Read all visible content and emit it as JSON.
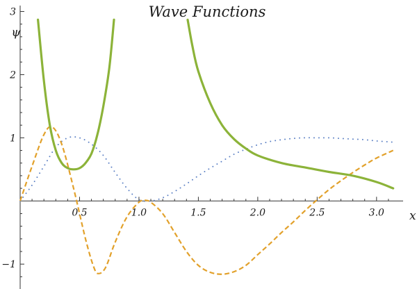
{
  "chart_data": {
    "type": "line",
    "title": "Wave Functions",
    "xlabel": "x",
    "ylabel": "ψ",
    "xlim": [
      0,
      3.2
    ],
    "ylim": [
      -1.35,
      3.05
    ],
    "xticks": [
      0.5,
      1.0,
      1.5,
      2.0,
      2.5,
      3.0
    ],
    "xtick_labels": [
      "0.5",
      "1.0",
      "1.5",
      "2.0",
      "2.5",
      "3.0"
    ],
    "yticks": [
      -1,
      1,
      2,
      3
    ],
    "ytick_labels": [
      "−1",
      "1",
      "2",
      "3"
    ],
    "grid": false,
    "series": [
      {
        "style": "dotted",
        "color": "#5a7fc4",
        "points": [
          [
            0.0,
            0.0
          ],
          [
            0.1,
            0.25
          ],
          [
            0.2,
            0.55
          ],
          [
            0.3,
            0.85
          ],
          [
            0.4,
            1.0
          ],
          [
            0.5,
            1.0
          ],
          [
            0.6,
            0.9
          ],
          [
            0.7,
            0.72
          ],
          [
            0.8,
            0.45
          ],
          [
            0.9,
            0.2
          ],
          [
            1.0,
            0.02
          ],
          [
            1.1,
            0.0
          ],
          [
            1.2,
            0.05
          ],
          [
            1.3,
            0.15
          ],
          [
            1.4,
            0.27
          ],
          [
            1.5,
            0.4
          ],
          [
            1.6,
            0.52
          ],
          [
            1.7,
            0.63
          ],
          [
            1.8,
            0.74
          ],
          [
            1.9,
            0.82
          ],
          [
            2.0,
            0.89
          ],
          [
            2.1,
            0.94
          ],
          [
            2.2,
            0.97
          ],
          [
            2.3,
            0.99
          ],
          [
            2.4,
            1.0
          ],
          [
            2.5,
            1.0
          ],
          [
            2.6,
            1.0
          ],
          [
            2.7,
            0.99
          ],
          [
            2.8,
            0.98
          ],
          [
            2.9,
            0.97
          ],
          [
            3.0,
            0.95
          ],
          [
            3.14,
            0.93
          ]
        ]
      },
      {
        "style": "dashed",
        "color": "#e2a12b",
        "points": [
          [
            0.0,
            0.0
          ],
          [
            0.1,
            0.55
          ],
          [
            0.2,
            1.05
          ],
          [
            0.27,
            1.17
          ],
          [
            0.35,
            0.9
          ],
          [
            0.45,
            0.2
          ],
          [
            0.55,
            -0.6
          ],
          [
            0.62,
            -1.05
          ],
          [
            0.66,
            -1.15
          ],
          [
            0.72,
            -1.05
          ],
          [
            0.8,
            -0.65
          ],
          [
            0.9,
            -0.25
          ],
          [
            1.0,
            -0.02
          ],
          [
            1.05,
            0.01
          ],
          [
            1.1,
            -0.02
          ],
          [
            1.2,
            -0.2
          ],
          [
            1.3,
            -0.5
          ],
          [
            1.4,
            -0.8
          ],
          [
            1.5,
            -1.02
          ],
          [
            1.6,
            -1.13
          ],
          [
            1.7,
            -1.16
          ],
          [
            1.8,
            -1.12
          ],
          [
            1.9,
            -1.02
          ],
          [
            2.0,
            -0.85
          ],
          [
            2.1,
            -0.68
          ],
          [
            2.2,
            -0.5
          ],
          [
            2.3,
            -0.33
          ],
          [
            2.4,
            -0.15
          ],
          [
            2.5,
            0.02
          ],
          [
            2.6,
            0.18
          ],
          [
            2.7,
            0.32
          ],
          [
            2.8,
            0.45
          ],
          [
            2.9,
            0.57
          ],
          [
            3.0,
            0.68
          ],
          [
            3.14,
            0.8
          ]
        ]
      },
      {
        "style": "solid",
        "color": "#8cb339",
        "segments": [
          [
            [
              0.15,
              2.87
            ],
            [
              0.2,
              1.9
            ],
            [
              0.25,
              1.2
            ],
            [
              0.3,
              0.8
            ],
            [
              0.35,
              0.6
            ],
            [
              0.4,
              0.52
            ],
            [
              0.45,
              0.5
            ],
            [
              0.5,
              0.52
            ],
            [
              0.55,
              0.6
            ],
            [
              0.6,
              0.75
            ],
            [
              0.65,
              1.05
            ],
            [
              0.7,
              1.5
            ],
            [
              0.75,
              2.1
            ],
            [
              0.79,
              2.87
            ]
          ],
          [
            [
              1.41,
              2.87
            ],
            [
              1.45,
              2.45
            ],
            [
              1.5,
              2.05
            ],
            [
              1.6,
              1.55
            ],
            [
              1.7,
              1.2
            ],
            [
              1.8,
              0.98
            ],
            [
              1.9,
              0.83
            ],
            [
              2.0,
              0.72
            ],
            [
              2.2,
              0.6
            ],
            [
              2.4,
              0.53
            ],
            [
              2.6,
              0.46
            ],
            [
              2.8,
              0.4
            ],
            [
              3.0,
              0.3
            ],
            [
              3.14,
              0.2
            ]
          ]
        ]
      }
    ]
  }
}
